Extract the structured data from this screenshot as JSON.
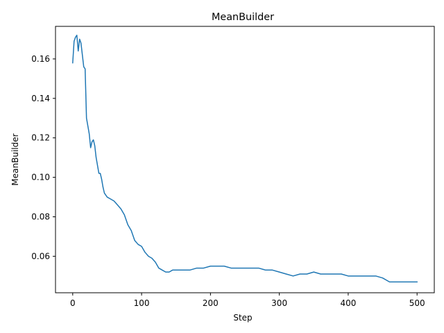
{
  "chart_data": {
    "type": "line",
    "title": "MeanBuilder",
    "xlabel": "Step",
    "ylabel": "MeanBuilder",
    "xlim": [
      -25,
      525
    ],
    "ylim": [
      0.0415,
      0.1765
    ],
    "grid": false,
    "xticks": [
      0,
      100,
      200,
      300,
      400,
      500
    ],
    "yticks": [
      0.06,
      0.08,
      0.1,
      0.12,
      0.14,
      0.16
    ],
    "xtick_labels": [
      "0",
      "100",
      "200",
      "300",
      "400",
      "500"
    ],
    "ytick_labels": [
      "0.06",
      "0.08",
      "0.10",
      "0.12",
      "0.14",
      "0.16"
    ],
    "series": [
      {
        "color": "#1f77b4",
        "x": [
          0,
          2,
          4,
          6,
          8,
          10,
          12,
          14,
          16,
          18,
          20,
          22,
          24,
          26,
          28,
          30,
          32,
          34,
          36,
          38,
          40,
          42,
          44,
          46,
          50,
          55,
          60,
          65,
          70,
          75,
          80,
          85,
          90,
          95,
          100,
          105,
          110,
          115,
          120,
          125,
          130,
          135,
          140,
          145,
          150,
          160,
          170,
          180,
          190,
          200,
          210,
          220,
          230,
          240,
          250,
          260,
          270,
          280,
          290,
          300,
          310,
          320,
          330,
          340,
          350,
          360,
          370,
          380,
          390,
          400,
          410,
          420,
          430,
          440,
          450,
          460,
          470,
          480,
          490,
          500
        ],
        "y": [
          0.158,
          0.169,
          0.171,
          0.172,
          0.164,
          0.17,
          0.168,
          0.162,
          0.156,
          0.155,
          0.13,
          0.126,
          0.122,
          0.115,
          0.118,
          0.119,
          0.116,
          0.11,
          0.106,
          0.102,
          0.102,
          0.099,
          0.095,
          0.092,
          0.09,
          0.089,
          0.088,
          0.086,
          0.084,
          0.081,
          0.076,
          0.073,
          0.068,
          0.066,
          0.065,
          0.062,
          0.06,
          0.059,
          0.057,
          0.054,
          0.053,
          0.052,
          0.052,
          0.053,
          0.053,
          0.053,
          0.053,
          0.054,
          0.054,
          0.055,
          0.055,
          0.055,
          0.054,
          0.054,
          0.054,
          0.054,
          0.054,
          0.053,
          0.053,
          0.052,
          0.051,
          0.05,
          0.051,
          0.051,
          0.052,
          0.051,
          0.051,
          0.051,
          0.051,
          0.05,
          0.05,
          0.05,
          0.05,
          0.05,
          0.049,
          0.047,
          0.047,
          0.047,
          0.047,
          0.047
        ]
      }
    ]
  }
}
